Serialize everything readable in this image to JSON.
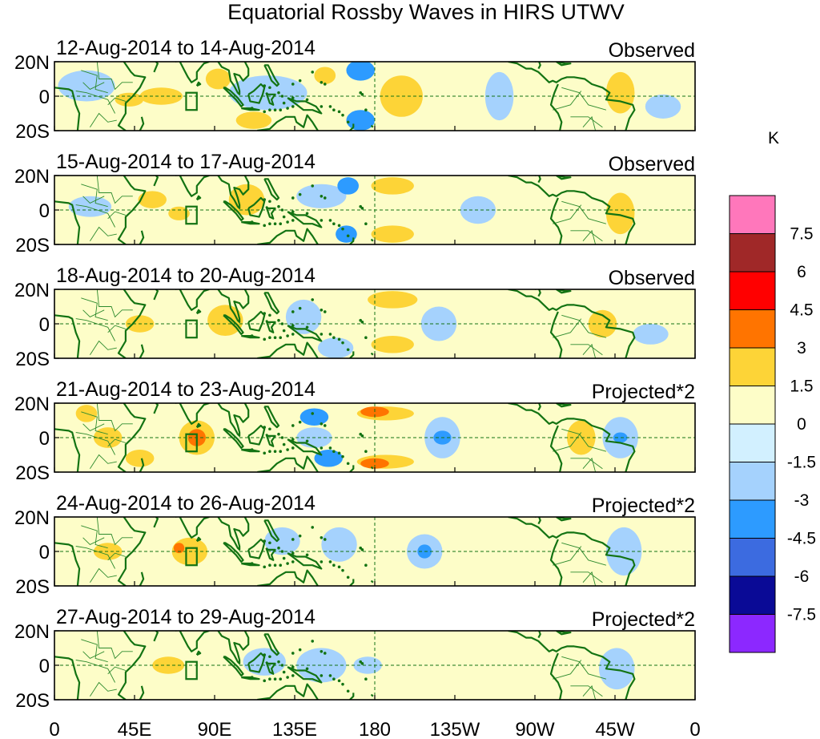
{
  "chart_data": {
    "type": "heatmap",
    "title": "Equatorial Rossby Waves in HIRS UTWV",
    "units": "K",
    "xlabel": "",
    "ylabel": "",
    "x_ticks": [
      "0",
      "45E",
      "90E",
      "135E",
      "180",
      "135W",
      "90W",
      "45W",
      "0"
    ],
    "x_tick_values": [
      0,
      45,
      90,
      135,
      180,
      225,
      270,
      315,
      360
    ],
    "y_ticks": [
      "20N",
      "0",
      "20S"
    ],
    "y_tick_values": [
      20,
      0,
      -20
    ],
    "xlim": [
      0,
      360
    ],
    "ylim": [
      -20,
      20
    ],
    "colorbar": {
      "levels": [
        "7.5",
        "6",
        "4.5",
        "3",
        "1.5",
        "0",
        "-1.5",
        "-3",
        "-4.5",
        "-6",
        "-7.5"
      ],
      "colors": [
        "#ff77bb",
        "#a02828",
        "#ff0000",
        "#ff7400",
        "#fdd437",
        "#fdfdc8",
        "#d2f0ff",
        "#a5d2fd",
        "#2d9bff",
        "#3c6be0",
        "#0a0a96",
        "#8c28ff"
      ]
    },
    "panels": [
      {
        "dates": "12-Aug-2014 to 14-Aug-2014",
        "tag": "Observed",
        "anomalies": [
          {
            "lon": 18,
            "lat": 6,
            "rx": 16,
            "ry": 9,
            "value": -2.2
          },
          {
            "lon": 42,
            "lat": -2,
            "rx": 8,
            "ry": 4,
            "value": 1.8
          },
          {
            "lon": 60,
            "lat": 0,
            "rx": 12,
            "ry": 5,
            "value": 1.6
          },
          {
            "lon": 92,
            "lat": 10,
            "rx": 7,
            "ry": 6,
            "value": 1.7
          },
          {
            "lon": 112,
            "lat": -14,
            "rx": 10,
            "ry": 5,
            "value": 1.6
          },
          {
            "lon": 120,
            "lat": 2,
            "rx": 22,
            "ry": 10,
            "value": -1.6
          },
          {
            "lon": 152,
            "lat": 12,
            "rx": 6,
            "ry": 5,
            "value": 1.6
          },
          {
            "lon": 172,
            "lat": 15,
            "rx": 8,
            "ry": 6,
            "value": -3.6
          },
          {
            "lon": 172,
            "lat": -14,
            "rx": 8,
            "ry": 6,
            "value": -3.6
          },
          {
            "lon": 195,
            "lat": 0,
            "rx": 12,
            "ry": 12,
            "value": 1.6
          },
          {
            "lon": 250,
            "lat": 0,
            "rx": 8,
            "ry": 14,
            "value": -2.0
          },
          {
            "lon": 318,
            "lat": 2,
            "rx": 8,
            "ry": 12,
            "value": 2.0
          },
          {
            "lon": 342,
            "lat": -6,
            "rx": 10,
            "ry": 7,
            "value": -1.6
          }
        ]
      },
      {
        "dates": "15-Aug-2014 to 17-Aug-2014",
        "tag": "Observed",
        "anomalies": [
          {
            "lon": 20,
            "lat": 2,
            "rx": 12,
            "ry": 6,
            "value": -1.6
          },
          {
            "lon": 55,
            "lat": 6,
            "rx": 8,
            "ry": 5,
            "value": 1.7
          },
          {
            "lon": 70,
            "lat": -2,
            "rx": 6,
            "ry": 4,
            "value": 1.6
          },
          {
            "lon": 108,
            "lat": 6,
            "rx": 10,
            "ry": 9,
            "value": 1.8
          },
          {
            "lon": 150,
            "lat": 8,
            "rx": 14,
            "ry": 7,
            "value": -1.8
          },
          {
            "lon": 165,
            "lat": 14,
            "rx": 6,
            "ry": 5,
            "value": -3.4
          },
          {
            "lon": 164,
            "lat": -14,
            "rx": 6,
            "ry": 5,
            "value": -3.4
          },
          {
            "lon": 190,
            "lat": 14,
            "rx": 12,
            "ry": 5,
            "value": 1.7
          },
          {
            "lon": 190,
            "lat": -14,
            "rx": 12,
            "ry": 5,
            "value": 1.7
          },
          {
            "lon": 238,
            "lat": 0,
            "rx": 10,
            "ry": 8,
            "value": -1.8
          },
          {
            "lon": 318,
            "lat": -2,
            "rx": 8,
            "ry": 12,
            "value": 1.9
          }
        ]
      },
      {
        "dates": "18-Aug-2014 to 20-Aug-2014",
        "tag": "Observed",
        "anomalies": [
          {
            "lon": 48,
            "lat": 0,
            "rx": 8,
            "ry": 5,
            "value": 1.6
          },
          {
            "lon": 96,
            "lat": 2,
            "rx": 10,
            "ry": 9,
            "value": 1.9
          },
          {
            "lon": 140,
            "lat": 4,
            "rx": 10,
            "ry": 10,
            "value": -1.7
          },
          {
            "lon": 158,
            "lat": -14,
            "rx": 10,
            "ry": 6,
            "value": -2.2
          },
          {
            "lon": 190,
            "lat": 14,
            "rx": 14,
            "ry": 5,
            "value": 1.6
          },
          {
            "lon": 190,
            "lat": -12,
            "rx": 12,
            "ry": 5,
            "value": 1.6
          },
          {
            "lon": 216,
            "lat": 0,
            "rx": 10,
            "ry": 10,
            "value": -1.6
          },
          {
            "lon": 308,
            "lat": 0,
            "rx": 8,
            "ry": 8,
            "value": 1.6
          },
          {
            "lon": 335,
            "lat": -6,
            "rx": 10,
            "ry": 6,
            "value": -1.6
          }
        ]
      },
      {
        "dates": "21-Aug-2014 to 23-Aug-2014",
        "tag": "Projected*2",
        "anomalies": [
          {
            "lon": 18,
            "lat": 14,
            "rx": 6,
            "ry": 5,
            "value": 1.6
          },
          {
            "lon": 30,
            "lat": 0,
            "rx": 8,
            "ry": 6,
            "value": 1.7
          },
          {
            "lon": 48,
            "lat": -12,
            "rx": 8,
            "ry": 5,
            "value": 1.6
          },
          {
            "lon": 80,
            "lat": 0,
            "rx": 10,
            "ry": 10,
            "value": 2.4
          },
          {
            "lon": 80,
            "lat": 0,
            "rx": 5,
            "ry": 5,
            "value": 3.6
          },
          {
            "lon": 146,
            "lat": 12,
            "rx": 8,
            "ry": 5,
            "value": -3.2
          },
          {
            "lon": 146,
            "lat": 0,
            "rx": 10,
            "ry": 6,
            "value": -1.8
          },
          {
            "lon": 154,
            "lat": -12,
            "rx": 8,
            "ry": 5,
            "value": -3.2
          },
          {
            "lon": 186,
            "lat": 14,
            "rx": 16,
            "ry": 4,
            "value": 2.6
          },
          {
            "lon": 180,
            "lat": 15,
            "rx": 8,
            "ry": 3,
            "value": 3.6
          },
          {
            "lon": 186,
            "lat": -14,
            "rx": 16,
            "ry": 4,
            "value": 2.6
          },
          {
            "lon": 180,
            "lat": -15,
            "rx": 8,
            "ry": 3,
            "value": 3.6
          },
          {
            "lon": 218,
            "lat": 0,
            "rx": 10,
            "ry": 12,
            "value": -1.8
          },
          {
            "lon": 218,
            "lat": 0,
            "rx": 5,
            "ry": 4,
            "value": -3.4
          },
          {
            "lon": 296,
            "lat": 0,
            "rx": 8,
            "ry": 10,
            "value": 1.7
          },
          {
            "lon": 318,
            "lat": 0,
            "rx": 10,
            "ry": 12,
            "value": -1.8
          },
          {
            "lon": 318,
            "lat": 0,
            "rx": 4,
            "ry": 3,
            "value": -3.2
          }
        ]
      },
      {
        "dates": "24-Aug-2014 to 26-Aug-2014",
        "tag": "Projected*2",
        "anomalies": [
          {
            "lon": 30,
            "lat": 0,
            "rx": 8,
            "ry": 5,
            "value": 1.8
          },
          {
            "lon": 76,
            "lat": 0,
            "rx": 10,
            "ry": 8,
            "value": 2.1
          },
          {
            "lon": 70,
            "lat": 2,
            "rx": 3,
            "ry": 3,
            "value": 3.2
          },
          {
            "lon": 128,
            "lat": 6,
            "rx": 10,
            "ry": 8,
            "value": -1.7
          },
          {
            "lon": 160,
            "lat": 4,
            "rx": 10,
            "ry": 10,
            "value": -1.6
          },
          {
            "lon": 208,
            "lat": 0,
            "rx": 10,
            "ry": 10,
            "value": -1.9
          },
          {
            "lon": 208,
            "lat": 0,
            "rx": 4,
            "ry": 4,
            "value": -3.2
          },
          {
            "lon": 264,
            "lat": 0,
            "rx": 16,
            "ry": 14,
            "value": 0.8
          },
          {
            "lon": 320,
            "lat": 0,
            "rx": 10,
            "ry": 14,
            "value": -1.6
          }
        ]
      },
      {
        "dates": "27-Aug-2014 to 29-Aug-2014",
        "tag": "Projected*2",
        "anomalies": [
          {
            "lon": 64,
            "lat": 0,
            "rx": 9,
            "ry": 5,
            "value": 1.8
          },
          {
            "lon": 118,
            "lat": 2,
            "rx": 12,
            "ry": 8,
            "value": -1.6
          },
          {
            "lon": 150,
            "lat": 0,
            "rx": 14,
            "ry": 10,
            "value": -1.6
          },
          {
            "lon": 176,
            "lat": 0,
            "rx": 8,
            "ry": 5,
            "value": -1.6
          },
          {
            "lon": 200,
            "lat": 2,
            "rx": 10,
            "ry": 8,
            "value": 0.8
          },
          {
            "lon": 316,
            "lat": -2,
            "rx": 10,
            "ry": 12,
            "value": -1.6
          }
        ]
      }
    ]
  }
}
